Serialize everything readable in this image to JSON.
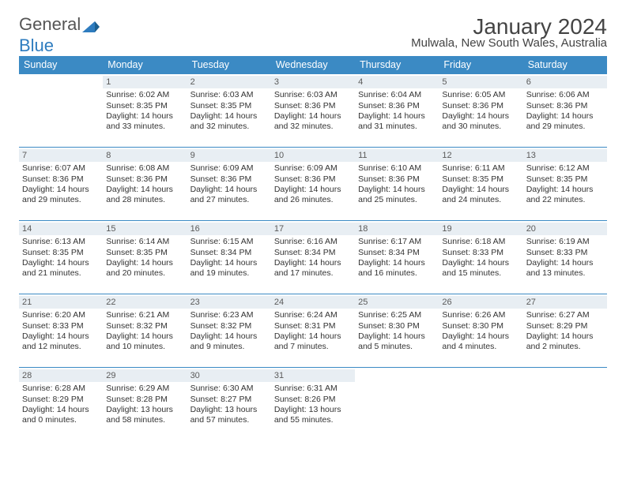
{
  "logo": {
    "text1": "General",
    "text2": "Blue"
  },
  "title": "January 2024",
  "subtitle": "Mulwala, New South Wales, Australia",
  "colors": {
    "header_bg": "#3b8ac4",
    "header_text": "#ffffff",
    "daynum_bg": "#e8eef3",
    "daynum_text": "#5a5a5a",
    "border": "#3b8ac4",
    "body_text": "#333333",
    "title_text": "#444444"
  },
  "weekdays": [
    "Sunday",
    "Monday",
    "Tuesday",
    "Wednesday",
    "Thursday",
    "Friday",
    "Saturday"
  ],
  "weeks": [
    [
      null,
      {
        "n": "1",
        "sr": "6:02 AM",
        "ss": "8:35 PM",
        "dl": "14 hours and 33 minutes."
      },
      {
        "n": "2",
        "sr": "6:03 AM",
        "ss": "8:35 PM",
        "dl": "14 hours and 32 minutes."
      },
      {
        "n": "3",
        "sr": "6:03 AM",
        "ss": "8:36 PM",
        "dl": "14 hours and 32 minutes."
      },
      {
        "n": "4",
        "sr": "6:04 AM",
        "ss": "8:36 PM",
        "dl": "14 hours and 31 minutes."
      },
      {
        "n": "5",
        "sr": "6:05 AM",
        "ss": "8:36 PM",
        "dl": "14 hours and 30 minutes."
      },
      {
        "n": "6",
        "sr": "6:06 AM",
        "ss": "8:36 PM",
        "dl": "14 hours and 29 minutes."
      }
    ],
    [
      {
        "n": "7",
        "sr": "6:07 AM",
        "ss": "8:36 PM",
        "dl": "14 hours and 29 minutes."
      },
      {
        "n": "8",
        "sr": "6:08 AM",
        "ss": "8:36 PM",
        "dl": "14 hours and 28 minutes."
      },
      {
        "n": "9",
        "sr": "6:09 AM",
        "ss": "8:36 PM",
        "dl": "14 hours and 27 minutes."
      },
      {
        "n": "10",
        "sr": "6:09 AM",
        "ss": "8:36 PM",
        "dl": "14 hours and 26 minutes."
      },
      {
        "n": "11",
        "sr": "6:10 AM",
        "ss": "8:36 PM",
        "dl": "14 hours and 25 minutes."
      },
      {
        "n": "12",
        "sr": "6:11 AM",
        "ss": "8:35 PM",
        "dl": "14 hours and 24 minutes."
      },
      {
        "n": "13",
        "sr": "6:12 AM",
        "ss": "8:35 PM",
        "dl": "14 hours and 22 minutes."
      }
    ],
    [
      {
        "n": "14",
        "sr": "6:13 AM",
        "ss": "8:35 PM",
        "dl": "14 hours and 21 minutes."
      },
      {
        "n": "15",
        "sr": "6:14 AM",
        "ss": "8:35 PM",
        "dl": "14 hours and 20 minutes."
      },
      {
        "n": "16",
        "sr": "6:15 AM",
        "ss": "8:34 PM",
        "dl": "14 hours and 19 minutes."
      },
      {
        "n": "17",
        "sr": "6:16 AM",
        "ss": "8:34 PM",
        "dl": "14 hours and 17 minutes."
      },
      {
        "n": "18",
        "sr": "6:17 AM",
        "ss": "8:34 PM",
        "dl": "14 hours and 16 minutes."
      },
      {
        "n": "19",
        "sr": "6:18 AM",
        "ss": "8:33 PM",
        "dl": "14 hours and 15 minutes."
      },
      {
        "n": "20",
        "sr": "6:19 AM",
        "ss": "8:33 PM",
        "dl": "14 hours and 13 minutes."
      }
    ],
    [
      {
        "n": "21",
        "sr": "6:20 AM",
        "ss": "8:33 PM",
        "dl": "14 hours and 12 minutes."
      },
      {
        "n": "22",
        "sr": "6:21 AM",
        "ss": "8:32 PM",
        "dl": "14 hours and 10 minutes."
      },
      {
        "n": "23",
        "sr": "6:23 AM",
        "ss": "8:32 PM",
        "dl": "14 hours and 9 minutes."
      },
      {
        "n": "24",
        "sr": "6:24 AM",
        "ss": "8:31 PM",
        "dl": "14 hours and 7 minutes."
      },
      {
        "n": "25",
        "sr": "6:25 AM",
        "ss": "8:30 PM",
        "dl": "14 hours and 5 minutes."
      },
      {
        "n": "26",
        "sr": "6:26 AM",
        "ss": "8:30 PM",
        "dl": "14 hours and 4 minutes."
      },
      {
        "n": "27",
        "sr": "6:27 AM",
        "ss": "8:29 PM",
        "dl": "14 hours and 2 minutes."
      }
    ],
    [
      {
        "n": "28",
        "sr": "6:28 AM",
        "ss": "8:29 PM",
        "dl": "14 hours and 0 minutes."
      },
      {
        "n": "29",
        "sr": "6:29 AM",
        "ss": "8:28 PM",
        "dl": "13 hours and 58 minutes."
      },
      {
        "n": "30",
        "sr": "6:30 AM",
        "ss": "8:27 PM",
        "dl": "13 hours and 57 minutes."
      },
      {
        "n": "31",
        "sr": "6:31 AM",
        "ss": "8:26 PM",
        "dl": "13 hours and 55 minutes."
      },
      null,
      null,
      null
    ]
  ],
  "labels": {
    "sunrise": "Sunrise:",
    "sunset": "Sunset:",
    "daylight": "Daylight:"
  }
}
